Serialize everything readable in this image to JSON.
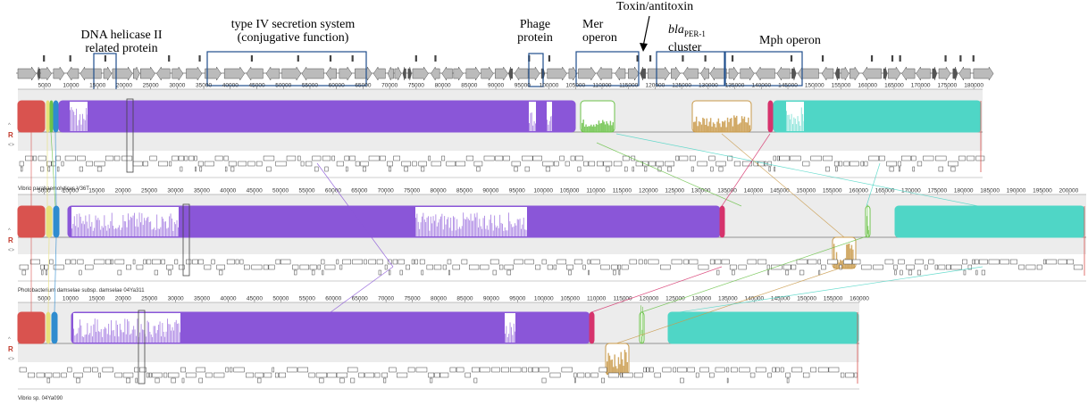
{
  "annotations": {
    "dna_helicase_line1": "DNA helicase II",
    "dna_helicase_line2": "related protein",
    "t4ss_line1": "type IV secretion system",
    "t4ss_line2": "(conjugative function)",
    "phage_line1": "Phage",
    "phage_line2": "protein",
    "mer_line1": "Mer",
    "mer_line2": "operon",
    "toxin": "Toxin/antitoxin",
    "bla_italic": "bla",
    "bla_sub": "PER-1",
    "bla_line2": "cluster",
    "mph": "Mph operon"
  },
  "panels": [
    {
      "label": "Vibrio parahaemolyticus V36T",
      "ticks": [
        "5000",
        "10000",
        "15000",
        "20000",
        "25000",
        "30000",
        "35000",
        "40000",
        "45000",
        "50000",
        "55000",
        "60000",
        "65000",
        "70000",
        "75000",
        "80000",
        "85000",
        "90000",
        "95000",
        "100000",
        "105000",
        "110000",
        "115000",
        "120000",
        "125000",
        "130000",
        "135000",
        "140000",
        "145000",
        "150000",
        "155000",
        "160000",
        "165000",
        "170000",
        "175000",
        "180000"
      ]
    },
    {
      "label": "Photobacterium damselae subsp. damselae 04Ya311",
      "ticks": [
        "5000",
        "10000",
        "15000",
        "20000",
        "25000",
        "30000",
        "35000",
        "40000",
        "45000",
        "50000",
        "55000",
        "60000",
        "65000",
        "70000",
        "75000",
        "80000",
        "85000",
        "90000",
        "95000",
        "100000",
        "105000",
        "110000",
        "115000",
        "120000",
        "125000",
        "130000",
        "135000",
        "140000",
        "145000",
        "150000",
        "155000",
        "160000",
        "165000",
        "170000",
        "175000",
        "180000",
        "185000",
        "190000",
        "195000",
        "200000"
      ]
    },
    {
      "label": "Vibrio sp. 04Ya090",
      "ticks": [
        "5000",
        "10000",
        "15000",
        "20000",
        "25000",
        "30000",
        "35000",
        "40000",
        "45000",
        "50000",
        "55000",
        "60000",
        "65000",
        "70000",
        "75000",
        "80000",
        "85000",
        "90000",
        "95000",
        "100000",
        "105000",
        "110000",
        "115000",
        "120000",
        "125000",
        "130000",
        "135000",
        "140000",
        "145000",
        "150000",
        "155000",
        "160000"
      ]
    }
  ],
  "colors": {
    "red": "#d9534f",
    "yellow": "#e8e07a",
    "green": "#6cc24a",
    "blue": "#2f8ccf",
    "purple": "#8a56d8",
    "orange": "#c99a4a",
    "magenta": "#d6336c",
    "teal": "#4fd6c6",
    "panel_bg": "#ececec",
    "box": "#1f4e8c"
  }
}
